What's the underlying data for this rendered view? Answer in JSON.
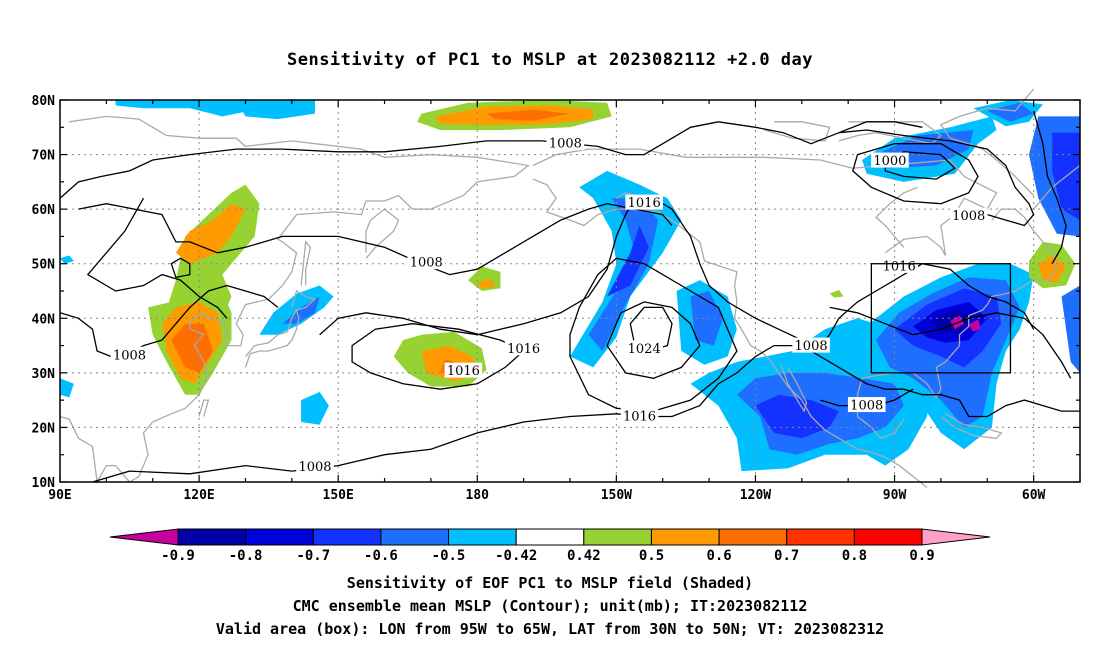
{
  "title": "Sensitivity of PC1 to MSLP at 2023082112 +2.0 day",
  "map": {
    "lon_range": [
      "90E",
      "50W"
    ],
    "lat_range": [
      "10N",
      "80N"
    ],
    "lat_labels": [
      "80N",
      "70N",
      "60N",
      "50N",
      "40N",
      "30N",
      "20N",
      "10N"
    ],
    "lon_labels": [
      "90E",
      "120E",
      "150E",
      "180",
      "150W",
      "120W",
      "90W",
      "60W"
    ],
    "gridlines": "dotted",
    "coastline_color": "#aaaaaa",
    "contour_color": "#000000",
    "contour_labels": [
      {
        "text": "1008",
        "lon": 199,
        "lat": 72.1
      },
      {
        "text": "1000",
        "lon": 269,
        "lat": 68.9
      },
      {
        "text": "1008",
        "lon": 286,
        "lat": 58.8
      },
      {
        "text": "1016",
        "lon": 216,
        "lat": 61.2
      },
      {
        "text": "1008",
        "lon": 169,
        "lat": 50.3
      },
      {
        "text": "1016",
        "lon": 271,
        "lat": 49.6
      },
      {
        "text": "1016",
        "lon": 190,
        "lat": 34.5
      },
      {
        "text": "1024",
        "lon": 216,
        "lat": 34.5
      },
      {
        "text": "1008",
        "lon": 252,
        "lat": 35.0
      },
      {
        "text": "1008",
        "lon": 105,
        "lat": 33.3
      },
      {
        "text": "1016",
        "lon": 177,
        "lat": 30.4
      },
      {
        "text": "1008",
        "lon": 264,
        "lat": 24.1
      },
      {
        "text": "1016",
        "lon": 215,
        "lat": 22.1
      },
      {
        "text": "1008",
        "lon": 145,
        "lat": 12.8
      }
    ],
    "valid_box": {
      "lon_min": 265,
      "lon_max": 295,
      "lat_min": 30,
      "lat_max": 50
    }
  },
  "colorbar": {
    "labels": [
      "-0.9",
      "-0.8",
      "-0.7",
      "-0.6",
      "-0.5",
      "-0.42",
      "0.42",
      "0.5",
      "0.6",
      "0.7",
      "0.8",
      "0.9"
    ],
    "colors": [
      "#c8009c",
      "#0000a8",
      "#0000d8",
      "#1432ff",
      "#1e6eff",
      "#00bfff",
      "#ffffff",
      "#96d232",
      "#ff9b00",
      "#ff6e00",
      "#ff3200",
      "#ff0000",
      "#ffa0c8"
    ]
  },
  "shading_colors": {
    "neg_weak": "#00bfff",
    "neg_mid": "#1e6eff",
    "neg_strong": "#1432ff",
    "neg_max": "#0000d8",
    "neg_extreme": "#0000a8",
    "neg_min": "#c8009c",
    "pos_weak": "#96d232",
    "pos_mid": "#ff9b00",
    "pos_strong": "#ff6e00"
  },
  "captions": [
    "Sensitivity of EOF PC1 to MSLP field (Shaded)",
    "CMC ensemble mean MSLP (Contour); unit(mb); IT:2023082112",
    "Valid area (box): LON from 95W to 65W, LAT from 30N to 50N; VT: 2023082312"
  ]
}
